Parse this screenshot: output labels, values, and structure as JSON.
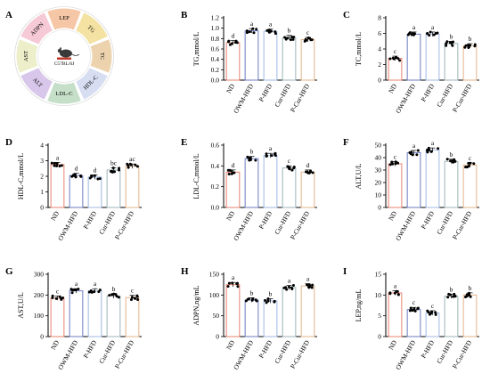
{
  "panel_a": {
    "panel_letter": "A",
    "center_label": "C57BL/6J",
    "segments": [
      {
        "label": "LEP",
        "color": "#f6c7a6"
      },
      {
        "label": "TG",
        "color": "#f3e2a1"
      },
      {
        "label": "TC",
        "color": "#ecd3ad"
      },
      {
        "label": "HDL-C",
        "color": "#d7def2"
      },
      {
        "label": "LDL-C",
        "color": "#c6dfc8"
      },
      {
        "label": "ALT",
        "color": "#d8c7ea"
      },
      {
        "label": "AST",
        "color": "#ecefc9"
      },
      {
        "label": "ADPN",
        "color": "#f6c9d6"
      }
    ]
  },
  "groups": [
    "ND",
    "OWM-HFD",
    "P-HFD",
    "Cur-HFD",
    "P-Cur-HFD"
  ],
  "group_colors": [
    "#e8826e",
    "#6b7cc0",
    "#9fb8e2",
    "#9bb3b8",
    "#e3b48a"
  ],
  "chart_data": [
    {
      "panel": "B",
      "type": "bar",
      "ylabel": "TG,mmol/L",
      "ylim": [
        0,
        1.2
      ],
      "yticks": [
        "0.0",
        "0.2",
        "0.4",
        "0.6",
        "0.8",
        "1.0",
        "1.2"
      ],
      "ytick_values": [
        0,
        0.2,
        0.4,
        0.6,
        0.8,
        1.0,
        1.2
      ],
      "values": [
        0.72,
        0.95,
        0.94,
        0.82,
        0.78
      ],
      "letters": [
        "d",
        "a",
        "a",
        "b",
        "c"
      ]
    },
    {
      "panel": "C",
      "type": "bar",
      "ylabel": "TC,mmol/L",
      "ylim": [
        0,
        8
      ],
      "yticks": [
        "0",
        "2",
        "4",
        "6",
        "8"
      ],
      "ytick_values": [
        0,
        2,
        4,
        6,
        8
      ],
      "values": [
        2.8,
        5.9,
        5.9,
        4.7,
        4.4
      ],
      "letters": [
        "c",
        "a",
        "a",
        "b",
        "b"
      ]
    },
    {
      "panel": "D",
      "type": "bar",
      "ylabel": "HDL-C,mmol/L",
      "ylim": [
        0,
        4
      ],
      "yticks": [
        "0",
        "1",
        "2",
        "3",
        "4"
      ],
      "ytick_values": [
        0,
        1,
        2,
        3,
        4
      ],
      "values": [
        2.75,
        2.05,
        1.95,
        2.4,
        2.65
      ],
      "letters": [
        "a",
        "d",
        "d",
        "bc",
        "ac"
      ]
    },
    {
      "panel": "E",
      "type": "bar",
      "ylabel": "LDL-C,mmol/L",
      "ylim": [
        0,
        0.6
      ],
      "yticks": [
        "0.0",
        "0.2",
        "0.4",
        "0.6"
      ],
      "ytick_values": [
        0,
        0.2,
        0.4,
        0.6
      ],
      "values": [
        0.34,
        0.47,
        0.5,
        0.38,
        0.34
      ],
      "letters": [
        "d",
        "b",
        "a",
        "c",
        "d"
      ]
    },
    {
      "panel": "F",
      "type": "bar",
      "ylabel": "ALT,U/L",
      "ylim": [
        0,
        50
      ],
      "yticks": [
        "0",
        "10",
        "20",
        "30",
        "40",
        "50"
      ],
      "ytick_values": [
        0,
        10,
        20,
        30,
        40,
        50
      ],
      "values": [
        35,
        44,
        46,
        37,
        34
      ],
      "letters": [
        "c",
        "a",
        "a",
        "b",
        "c"
      ]
    },
    {
      "panel": "G",
      "type": "bar",
      "ylabel": "AST,U/L",
      "ylim": [
        0,
        300
      ],
      "yticks": [
        "0",
        "100",
        "200",
        "300"
      ],
      "ytick_values": [
        0,
        100,
        200,
        300
      ],
      "values": [
        185,
        220,
        220,
        195,
        188
      ],
      "letters": [
        "c",
        "a",
        "a",
        "b",
        "c"
      ]
    },
    {
      "panel": "H",
      "type": "bar",
      "ylabel": "ADPN,ng/mL",
      "ylim": [
        0,
        150
      ],
      "yticks": [
        "0",
        "50",
        "100",
        "150"
      ],
      "ytick_values": [
        0,
        50,
        100,
        150
      ],
      "values": [
        125,
        88,
        86,
        118,
        122
      ],
      "letters": [
        "a",
        "b",
        "b",
        "a",
        "a"
      ]
    },
    {
      "panel": "I",
      "type": "bar",
      "ylabel": "LEP,ng/mL",
      "ylim": [
        0,
        15
      ],
      "yticks": [
        "0",
        "5",
        "10",
        "15"
      ],
      "ytick_values": [
        0,
        5,
        10,
        15
      ],
      "values": [
        10.5,
        6.5,
        5.7,
        9.7,
        10.0
      ],
      "letters": [
        "a",
        "c",
        "c",
        "b",
        "b"
      ]
    }
  ]
}
